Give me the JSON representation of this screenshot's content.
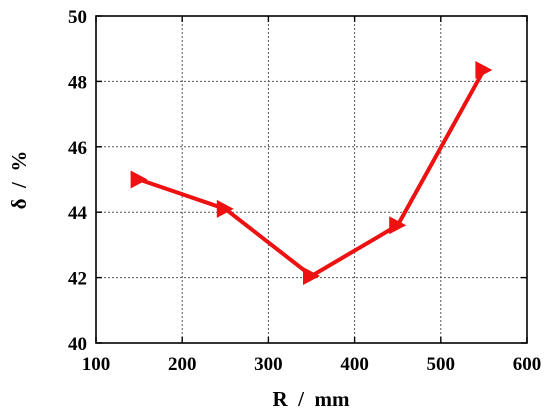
{
  "chart_data": {
    "type": "line",
    "xlabel": "R  /  mm",
    "ylabel": "δ  /  %",
    "xlim": [
      100,
      600
    ],
    "ylim": [
      40,
      50
    ],
    "xticks": [
      100,
      200,
      300,
      400,
      500,
      600
    ],
    "yticks": [
      40,
      42,
      44,
      46,
      48,
      50
    ],
    "grid": true,
    "marker": "right-triangle",
    "series_color": "#ee1111",
    "series": [
      {
        "x": [
          150,
          250,
          350,
          450,
          550
        ],
        "y": [
          45.0,
          44.1,
          42.05,
          43.6,
          48.35
        ]
      }
    ]
  }
}
